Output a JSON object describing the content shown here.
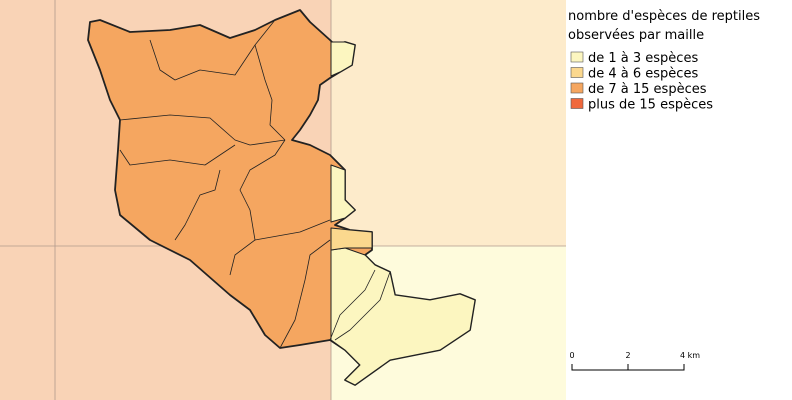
{
  "legend": {
    "title": [
      "nombre d'espèces de reptiles",
      "observées par maille"
    ],
    "items": [
      {
        "label": "de 1 à 3 espèces",
        "color": "#fcf6c0"
      },
      {
        "label": "de 4 à 6 espèces",
        "color": "#fbd88e"
      },
      {
        "label": "de 7 à 15 espèces",
        "color": "#f5a660"
      },
      {
        "label": "plus de 15 espèces",
        "color": "#f0683c"
      }
    ]
  },
  "scale_bar": {
    "labels": [
      "0",
      "2",
      "4 km"
    ]
  }
}
